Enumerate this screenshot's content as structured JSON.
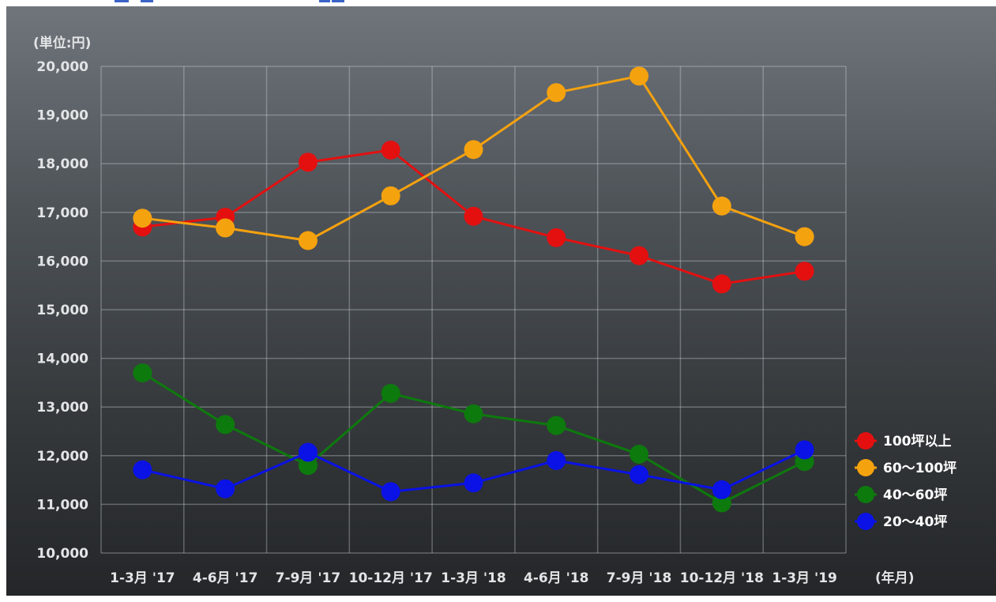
{
  "chart_data": {
    "type": "line",
    "unit_label": "(単位:円)",
    "x_axis_label": "(年月)",
    "categories": [
      "1-3月 '17",
      "4-6月 '17",
      "7-9月 '17",
      "10-12月 '17",
      "1-3月 '18",
      "4-6月 '18",
      "7-9月 '18",
      "10-12月 '18",
      "1-3月 '19"
    ],
    "y_ticks": [
      "10,000",
      "11,000",
      "12,000",
      "13,000",
      "14,000",
      "15,000",
      "16,000",
      "17,000",
      "18,000",
      "19,000",
      "20,000"
    ],
    "ylim": [
      10000,
      20000
    ],
    "grid": true,
    "legend_position": "right-bottom",
    "series": [
      {
        "name": "100坪以上",
        "color": "#e41010",
        "values": [
          16700,
          16900,
          18030,
          18280,
          16920,
          16480,
          16110,
          15530,
          15790
        ]
      },
      {
        "name": "60～100坪",
        "color": "#f5a20f",
        "values": [
          16880,
          16680,
          16420,
          17340,
          18290,
          19460,
          19800,
          17130,
          16500
        ]
      },
      {
        "name": "40～60坪",
        "color": "#0d7a0d",
        "values": [
          13700,
          12640,
          11800,
          13280,
          12860,
          12620,
          12030,
          11030,
          11880
        ]
      },
      {
        "name": "20～40坪",
        "color": "#0a12e6",
        "values": [
          11710,
          11320,
          12070,
          11260,
          11440,
          11900,
          11610,
          11300,
          12120
        ]
      }
    ]
  }
}
